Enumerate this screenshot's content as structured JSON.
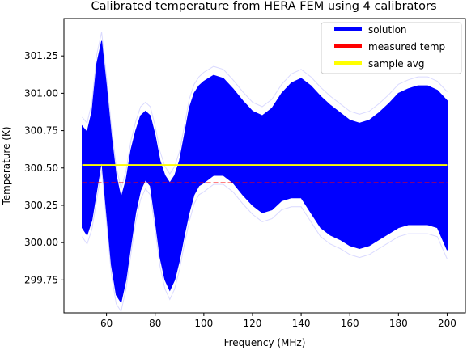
{
  "chart_data": {
    "type": "line",
    "title": "Calibrated temperature from HERA FEM using 4 calibrators",
    "xlabel": "Frequency (MHz)",
    "ylabel": "Temperature (K)",
    "xlim": [
      42.5,
      207.5
    ],
    "ylim": [
      299.53,
      301.5
    ],
    "x_ticks": [
      60,
      80,
      100,
      120,
      140,
      160,
      180,
      200
    ],
    "x_tick_labels": [
      "60",
      "80",
      "100",
      "120",
      "140",
      "160",
      "180",
      "200"
    ],
    "y_ticks": [
      299.75,
      300.0,
      300.25,
      300.5,
      300.75,
      301.0,
      301.25
    ],
    "y_tick_labels": [
      "299.75",
      "300.00",
      "300.25",
      "300.50",
      "300.75",
      "301.00",
      "301.25"
    ],
    "grid": false,
    "legend_position": "top-right",
    "series": [
      {
        "name": "solution",
        "color": "#0000ff",
        "style": "band",
        "x": [
          50,
          52,
          54,
          56,
          58,
          60,
          62,
          64,
          66,
          68,
          70,
          72,
          74,
          76,
          78,
          80,
          82,
          84,
          86,
          88,
          90,
          92,
          94,
          96,
          98,
          100,
          104,
          108,
          112,
          116,
          120,
          124,
          128,
          132,
          136,
          140,
          144,
          148,
          152,
          156,
          160,
          164,
          168,
          172,
          176,
          180,
          184,
          188,
          192,
          196,
          200
        ],
        "upper": [
          300.78,
          300.74,
          300.88,
          301.2,
          301.35,
          301.05,
          300.72,
          300.45,
          300.3,
          300.42,
          300.62,
          300.75,
          300.85,
          300.88,
          300.85,
          300.72,
          300.55,
          300.45,
          300.4,
          300.45,
          300.55,
          300.72,
          300.9,
          301.0,
          301.05,
          301.08,
          301.12,
          301.1,
          301.03,
          300.95,
          300.88,
          300.85,
          300.9,
          301.0,
          301.07,
          301.1,
          301.05,
          300.98,
          300.92,
          300.87,
          300.82,
          300.8,
          300.82,
          300.87,
          300.93,
          301.0,
          301.03,
          301.05,
          301.05,
          301.02,
          300.95
        ],
        "lower": [
          300.1,
          300.05,
          300.15,
          300.35,
          300.55,
          300.2,
          299.85,
          299.65,
          299.6,
          299.75,
          299.98,
          300.2,
          300.35,
          300.42,
          300.38,
          300.15,
          299.9,
          299.75,
          299.68,
          299.75,
          299.88,
          300.05,
          300.2,
          300.32,
          300.38,
          300.4,
          300.45,
          300.45,
          300.4,
          300.32,
          300.25,
          300.2,
          300.22,
          300.28,
          300.3,
          300.3,
          300.2,
          300.1,
          300.05,
          300.02,
          299.98,
          299.96,
          299.98,
          300.02,
          300.06,
          300.1,
          300.12,
          300.12,
          300.12,
          300.1,
          299.95
        ]
      },
      {
        "name": "measured temp",
        "color": "#ff0000",
        "style": "dashed",
        "x": [
          50,
          200
        ],
        "values": [
          300.4,
          300.4
        ]
      },
      {
        "name": "sample avg",
        "color": "#ffff00",
        "style": "solid",
        "x": [
          50,
          200
        ],
        "values": [
          300.52,
          300.52
        ]
      }
    ]
  }
}
